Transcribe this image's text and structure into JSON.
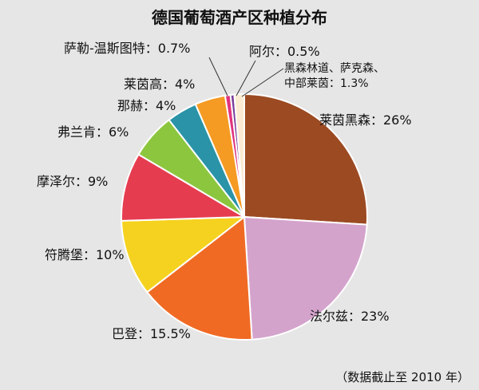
{
  "chart_data": {
    "type": "pie",
    "title": "德国葡萄酒产区种植分布",
    "footnote": "（数据截止至 2010 年）",
    "slices": [
      {
        "label": "莱茵黑森",
        "display": "莱茵黑森：26%",
        "value": 26,
        "color": "#9b4a22"
      },
      {
        "label": "法尔兹",
        "display": "法尔兹：23%",
        "value": 23,
        "color": "#d4a3cc"
      },
      {
        "label": "巴登",
        "display": "巴登：15.5%",
        "value": 15.5,
        "color": "#f06a24"
      },
      {
        "label": "符腾堡",
        "display": "符腾堡：10%",
        "value": 10,
        "color": "#f5d21f"
      },
      {
        "label": "摩泽尔",
        "display": "摩泽尔：9%",
        "value": 9,
        "color": "#e63c50"
      },
      {
        "label": "弗兰肯",
        "display": "弗兰肯：6%",
        "value": 6,
        "color": "#8cc63e"
      },
      {
        "label": "那赫",
        "display": "那赫：4%",
        "value": 4,
        "color": "#2a93a8"
      },
      {
        "label": "莱茵高",
        "display": "莱茵高：4%",
        "value": 4,
        "color": "#f59a22"
      },
      {
        "label": "萨勒-温斯图特",
        "display": "萨勒-温斯图特：0.7%",
        "value": 0.7,
        "color": "#e0347e"
      },
      {
        "label": "阿尔",
        "display": "阿尔：0.5%",
        "value": 0.5,
        "color": "#7a3d9a"
      },
      {
        "label": "黑森林道、萨克森、中部莱茵",
        "display_lines": [
          "黑森林道、萨克森、",
          "中部莱茵：1.3%"
        ],
        "value": 1.3,
        "color": "#faebd2"
      }
    ]
  }
}
